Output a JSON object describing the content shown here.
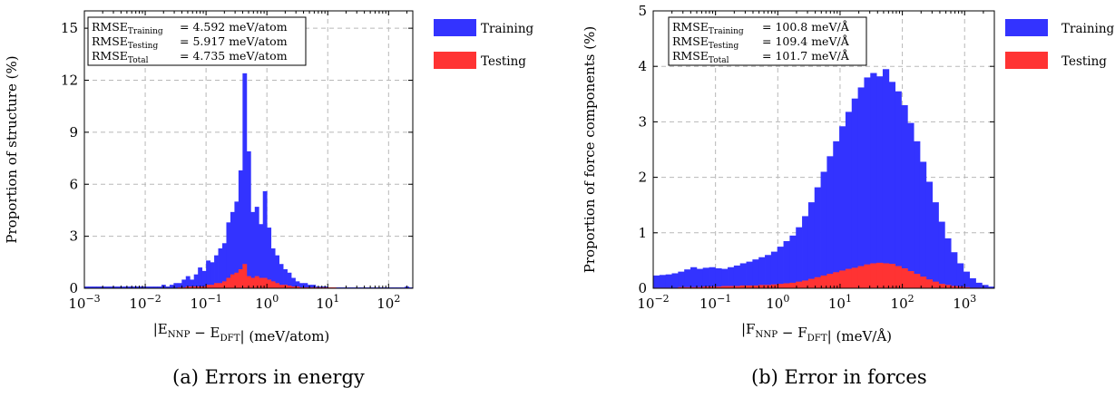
{
  "captions": [
    "(a) Errors in energy",
    "(b) Error in forces"
  ],
  "colors": {
    "training": "#3333ff",
    "testing": "#ff3333"
  },
  "chart_data": [
    {
      "type": "bar",
      "x_scale": "log",
      "xlim": [
        0.001,
        250
      ],
      "ylim": [
        0,
        16
      ],
      "xlabel": "|E_NNP − E_DFT| (meV/atom)",
      "ylabel": "Proportion of structure (%)",
      "x_ticks": [
        0.001,
        0.01,
        0.1,
        1,
        10,
        100
      ],
      "x_tick_labels": [
        "10^-3",
        "10^-2",
        "10^-1",
        "10^0",
        "10^1",
        "10^2"
      ],
      "y_ticks": [
        0,
        3,
        6,
        9,
        12,
        15
      ],
      "y_tick_labels": [
        "0",
        "3",
        "6",
        "9",
        "12",
        "15"
      ],
      "grid": true,
      "legend": {
        "placement": "outside-right",
        "entries": [
          "Training",
          "Testing"
        ]
      },
      "rmse_box": [
        {
          "sub": "Training",
          "value": "= 4.592 meV/atom"
        },
        {
          "sub": "Testing",
          "value": "= 5.917 meV/atom"
        },
        {
          "sub": "Total",
          "value": "= 4.735 meV/atom"
        }
      ],
      "bin_log_range": [
        -3,
        2.4
      ],
      "series": [
        {
          "name": "Training",
          "values": [
            0.1,
            0.1,
            0.1,
            0.1,
            0.1,
            0.1,
            0.1,
            0.1,
            0.1,
            0.1,
            0.1,
            0.1,
            0.1,
            0.1,
            0.1,
            0.1,
            0.1,
            0.1,
            0.1,
            0.2,
            0.1,
            0.2,
            0.3,
            0.3,
            0.5,
            0.7,
            0.5,
            0.8,
            1.2,
            1.0,
            1.6,
            1.5,
            1.9,
            2.3,
            2.6,
            3.8,
            4.4,
            5.0,
            6.8,
            12.4,
            7.9,
            4.4,
            4.7,
            3.7,
            5.6,
            3.5,
            2.3,
            1.9,
            1.4,
            1.1,
            0.9,
            0.6,
            0.4,
            0.3,
            0.3,
            0.2,
            0.2,
            0.1,
            0.1,
            0.1,
            0.05,
            0.05,
            0.05,
            0.05,
            0.05,
            0.05,
            0.05,
            0.05,
            0.05,
            0.05,
            0.05,
            0.05,
            0.05,
            0.05,
            0.05,
            0.05,
            0.05,
            0.05,
            0.05,
            0.1,
            0.05
          ]
        },
        {
          "name": "Testing",
          "values": [
            0,
            0,
            0,
            0,
            0,
            0,
            0,
            0,
            0,
            0,
            0,
            0,
            0,
            0,
            0,
            0,
            0,
            0,
            0,
            0,
            0,
            0,
            0,
            0.05,
            0.05,
            0.1,
            0.1,
            0.1,
            0.1,
            0.1,
            0.2,
            0.2,
            0.3,
            0.3,
            0.4,
            0.6,
            0.8,
            0.9,
            1.1,
            1.4,
            0.7,
            0.6,
            0.7,
            0.6,
            0.6,
            0.5,
            0.4,
            0.3,
            0.2,
            0.2,
            0.15,
            0.1,
            0.1,
            0.05,
            0.05,
            0.05,
            0.05,
            0.05,
            0.05,
            0.05,
            0.05,
            0.05,
            0,
            0,
            0,
            0,
            0,
            0,
            0,
            0,
            0,
            0,
            0,
            0,
            0,
            0,
            0,
            0,
            0,
            0,
            0
          ]
        }
      ]
    },
    {
      "type": "bar",
      "x_scale": "log",
      "xlim": [
        0.01,
        3000
      ],
      "ylim": [
        0,
        5
      ],
      "xlabel": "|F_NNP − F_DFT| (meV/Å)",
      "ylabel": "Proportion of force components (%)",
      "x_ticks": [
        0.01,
        0.1,
        1,
        10,
        100,
        1000
      ],
      "x_tick_labels": [
        "10^-2",
        "10^-1",
        "10^0",
        "10^1",
        "10^2",
        "10^3"
      ],
      "y_ticks": [
        0,
        1,
        2,
        3,
        4,
        5
      ],
      "y_tick_labels": [
        "0",
        "1",
        "2",
        "3",
        "4",
        "5"
      ],
      "grid": true,
      "legend": {
        "placement": "outside-right",
        "entries": [
          "Training",
          "Testing"
        ]
      },
      "rmse_box": [
        {
          "sub": "Training",
          "value": "= 100.8 meV/Å"
        },
        {
          "sub": "Testing",
          "value": "= 109.4 meV/Å"
        },
        {
          "sub": "Total",
          "value": "= 101.7 meV/Å"
        }
      ],
      "bin_log_range": [
        -2,
        3.477
      ],
      "series": [
        {
          "name": "Training",
          "values": [
            0.23,
            0.24,
            0.25,
            0.27,
            0.3,
            0.34,
            0.38,
            0.35,
            0.37,
            0.38,
            0.36,
            0.35,
            0.38,
            0.41,
            0.45,
            0.48,
            0.52,
            0.56,
            0.6,
            0.66,
            0.75,
            0.85,
            0.95,
            1.1,
            1.3,
            1.55,
            1.82,
            2.1,
            2.38,
            2.65,
            2.92,
            3.18,
            3.42,
            3.62,
            3.8,
            3.88,
            3.82,
            3.95,
            3.72,
            3.55,
            3.3,
            2.98,
            2.65,
            2.28,
            1.92,
            1.55,
            1.2,
            0.9,
            0.65,
            0.45,
            0.3,
            0.18,
            0.1,
            0.06,
            0.03
          ]
        },
        {
          "name": "Testing",
          "values": [
            0.01,
            0.01,
            0.01,
            0.01,
            0.02,
            0.02,
            0.02,
            0.02,
            0.03,
            0.03,
            0.03,
            0.04,
            0.04,
            0.04,
            0.05,
            0.05,
            0.05,
            0.06,
            0.06,
            0.07,
            0.08,
            0.09,
            0.1,
            0.12,
            0.14,
            0.17,
            0.2,
            0.23,
            0.26,
            0.29,
            0.32,
            0.35,
            0.37,
            0.4,
            0.43,
            0.45,
            0.46,
            0.45,
            0.44,
            0.4,
            0.36,
            0.31,
            0.26,
            0.21,
            0.16,
            0.12,
            0.08,
            0.06,
            0.04,
            0.03,
            0.02,
            0.01,
            0.01,
            0.0,
            0.0
          ]
        }
      ]
    }
  ]
}
